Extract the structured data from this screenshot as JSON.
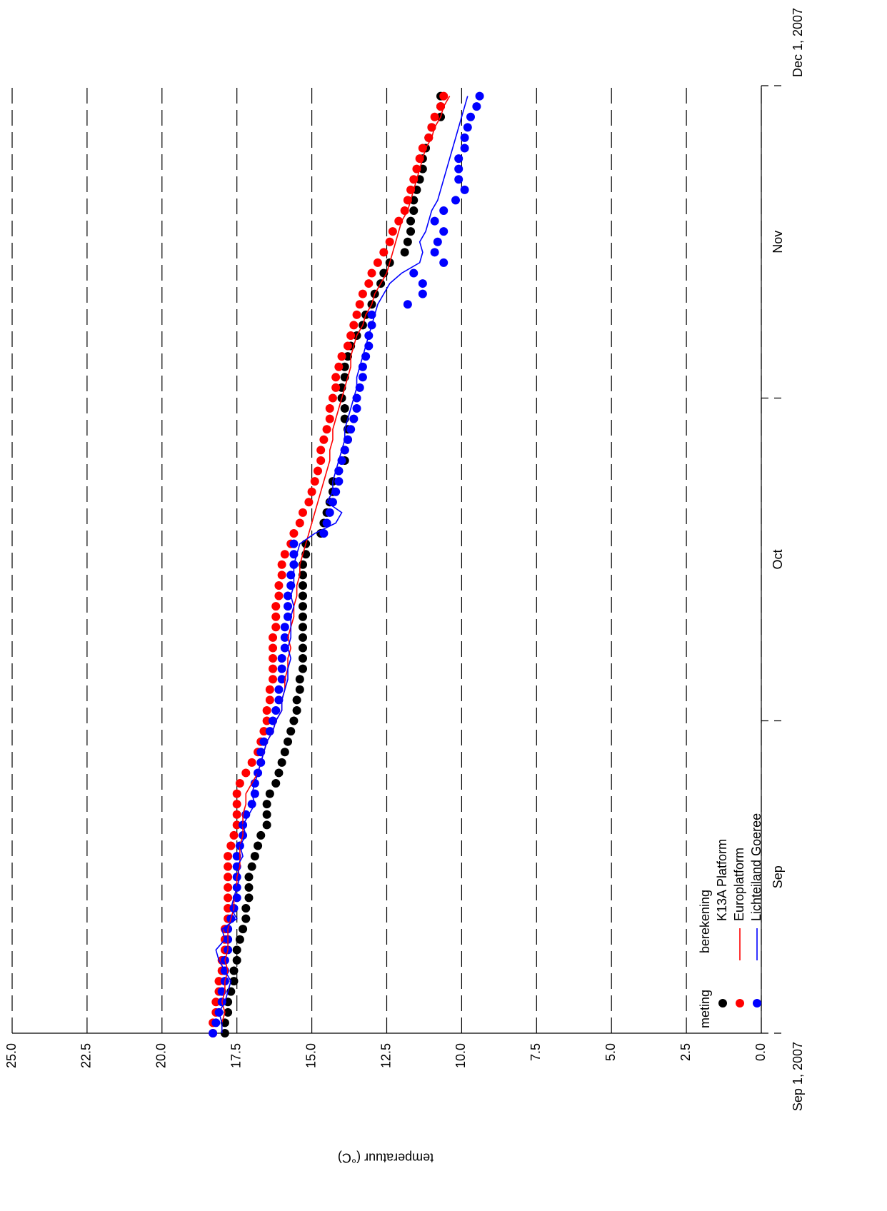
{
  "chart_data": {
    "type": "line",
    "ylabel": "temperatuur (°C)",
    "ylim": [
      0,
      25
    ],
    "yticks": [
      {
        "value": 0,
        "label": "0.0"
      },
      2.5,
      {
        "value": 5,
        "label": "5.0"
      },
      7.5,
      {
        "value": 10,
        "label": "10.0"
      },
      12.5,
      {
        "value": 15,
        "label": "15.0"
      },
      17.5,
      {
        "value": 20,
        "label": "20.0"
      },
      22.5,
      {
        "value": 25,
        "label": "25.0"
      }
    ],
    "grid": true,
    "xlim": [
      "2007-09-01",
      "2007-12-01"
    ],
    "xticks": [
      {
        "value": "2007-09-01",
        "label": "Sep 1, 2007"
      },
      "2007-10-01",
      "2007-11-01",
      {
        "value": "2007-12-01",
        "label": "Dec 1, 2007"
      }
    ],
    "months": [
      "Sep",
      "Oct",
      "Nov"
    ],
    "legend_titles": [
      "meting",
      "berekening"
    ],
    "legend": "lower left",
    "x": [
      "2007-09-01",
      "2007-09-02",
      "2007-09-03",
      "2007-09-04",
      "2007-09-05",
      "2007-09-06",
      "2007-09-07",
      "2007-09-08",
      "2007-09-09",
      "2007-09-10",
      "2007-09-11",
      "2007-09-12",
      "2007-09-13",
      "2007-09-14",
      "2007-09-15",
      "2007-09-16",
      "2007-09-17",
      "2007-09-18",
      "2007-09-19",
      "2007-09-20",
      "2007-09-21",
      "2007-09-22",
      "2007-09-23",
      "2007-09-24",
      "2007-09-25",
      "2007-09-26",
      "2007-09-27",
      "2007-09-28",
      "2007-09-29",
      "2007-09-30",
      "2007-10-01",
      "2007-10-02",
      "2007-10-03",
      "2007-10-04",
      "2007-10-05",
      "2007-10-06",
      "2007-10-07",
      "2007-10-08",
      "2007-10-09",
      "2007-10-10",
      "2007-10-11",
      "2007-10-12",
      "2007-10-13",
      "2007-10-14",
      "2007-10-15",
      "2007-10-16",
      "2007-10-17",
      "2007-10-18",
      "2007-10-19",
      "2007-10-20",
      "2007-10-21",
      "2007-10-22",
      "2007-10-23",
      "2007-10-24",
      "2007-10-25",
      "2007-10-26",
      "2007-10-27",
      "2007-10-28",
      "2007-10-29",
      "2007-10-30",
      "2007-10-31",
      "2007-11-01",
      "2007-11-02",
      "2007-11-03",
      "2007-11-04",
      "2007-11-05",
      "2007-11-06",
      "2007-11-07",
      "2007-11-08",
      "2007-11-09",
      "2007-11-10",
      "2007-11-11",
      "2007-11-12",
      "2007-11-13",
      "2007-11-14",
      "2007-11-15",
      "2007-11-16",
      "2007-11-17",
      "2007-11-18",
      "2007-11-19",
      "2007-11-20",
      "2007-11-21",
      "2007-11-22",
      "2007-11-23",
      "2007-11-24",
      "2007-11-25",
      "2007-11-26",
      "2007-11-27",
      "2007-11-28",
      "2007-11-29",
      "2007-11-30"
    ],
    "series": [
      {
        "name": "K13A Platform",
        "color": "#000000",
        "values": [
          17.9,
          17.9,
          17.8,
          17.8,
          17.7,
          17.6,
          17.6,
          17.5,
          17.5,
          17.4,
          17.3,
          17.2,
          17.2,
          17.1,
          17.1,
          17.1,
          17.0,
          16.9,
          16.8,
          16.7,
          16.5,
          16.5,
          16.5,
          16.4,
          16.2,
          16.1,
          16.0,
          15.9,
          15.8,
          15.7,
          15.6,
          15.5,
          15.5,
          15.4,
          15.4,
          15.3,
          15.3,
          15.3,
          15.3,
          15.3,
          15.3,
          15.3,
          15.3,
          15.3,
          15.3,
          15.3,
          15.2,
          15.2,
          14.7,
          14.6,
          14.5,
          14.4,
          14.3,
          14.3,
          14.1,
          13.9,
          13.9,
          13.8,
          13.8,
          13.9,
          13.9,
          14.0,
          14.0,
          13.9,
          13.9,
          13.8,
          13.7,
          13.5,
          13.3,
          13.2,
          13.0,
          12.9,
          12.7,
          12.6,
          12.4,
          11.9,
          11.8,
          11.7,
          11.7,
          11.6,
          11.6,
          11.5,
          11.4,
          11.3,
          11.3,
          11.2,
          11.1,
          11.0,
          10.7,
          10.7,
          10.7
        ]
      },
      {
        "name": "Europlatform",
        "color": "#ff0000",
        "values": [
          18.3,
          18.3,
          18.2,
          18.2,
          18.1,
          18.1,
          18.0,
          18.0,
          17.9,
          17.9,
          17.9,
          17.8,
          17.8,
          17.8,
          17.8,
          17.8,
          17.8,
          17.8,
          17.7,
          17.6,
          17.5,
          17.5,
          17.5,
          17.5,
          17.4,
          17.2,
          17.0,
          16.8,
          16.7,
          16.6,
          16.5,
          16.5,
          16.4,
          16.4,
          16.3,
          16.3,
          16.3,
          16.3,
          16.3,
          16.2,
          16.2,
          16.2,
          16.1,
          16.1,
          16.0,
          16.0,
          15.9,
          15.7,
          15.6,
          15.4,
          15.3,
          15.1,
          15.0,
          14.9,
          14.8,
          14.7,
          14.7,
          14.6,
          14.5,
          14.4,
          14.4,
          14.3,
          14.2,
          14.2,
          14.1,
          14.0,
          13.8,
          13.7,
          13.6,
          13.5,
          13.4,
          13.3,
          13.1,
          13.0,
          12.8,
          12.6,
          12.4,
          12.3,
          12.1,
          11.9,
          11.8,
          11.7,
          11.6,
          11.5,
          11.4,
          11.3,
          11.1,
          11.0,
          10.9,
          10.7,
          10.6
        ],
        "computed": [
          18.0,
          18.0,
          17.9,
          18.0,
          17.9,
          17.9,
          17.8,
          17.9,
          17.8,
          17.8,
          17.8,
          17.7,
          17.6,
          17.6,
          17.5,
          17.5,
          17.4,
          17.4,
          17.4,
          17.3,
          17.3,
          17.3,
          17.2,
          17.2,
          17.0,
          16.8,
          16.7,
          16.6,
          16.5,
          16.3,
          16.2,
          16.0,
          16.0,
          15.9,
          15.9,
          15.8,
          15.8,
          15.7,
          15.8,
          15.7,
          15.6,
          15.6,
          15.5,
          15.5,
          15.4,
          15.4,
          15.3,
          15.2,
          15.1,
          15.0,
          14.9,
          14.8,
          14.7,
          14.6,
          14.5,
          14.4,
          14.4,
          14.3,
          14.3,
          14.2,
          14.1,
          14.0,
          13.9,
          13.8,
          13.7,
          13.7,
          13.6,
          13.5,
          13.3,
          13.2,
          13.0,
          12.9,
          12.7,
          12.5,
          12.4,
          12.3,
          12.2,
          12.1,
          12.0,
          11.8,
          11.7,
          11.6,
          11.5,
          11.4,
          11.3,
          11.2,
          11.0,
          10.9,
          10.7,
          10.6,
          10.4
        ]
      },
      {
        "name": "Lichteiland Goeree",
        "color": "#0000ff",
        "values": [
          18.3,
          18.2,
          18.1,
          18.0,
          18.0,
          17.9,
          17.9,
          17.9,
          17.8,
          17.8,
          17.8,
          17.7,
          17.6,
          17.5,
          17.5,
          17.5,
          17.5,
          17.5,
          17.4,
          17.3,
          17.3,
          17.2,
          17.0,
          16.9,
          16.9,
          16.8,
          16.7,
          16.7,
          16.6,
          16.4,
          16.3,
          16.2,
          16.1,
          16.1,
          16.0,
          16.0,
          16.0,
          15.9,
          15.9,
          15.9,
          15.8,
          15.8,
          15.8,
          15.7,
          15.7,
          15.6,
          15.6,
          15.6,
          14.6,
          14.5,
          14.4,
          14.3,
          14.2,
          14.1,
          14.1,
          14.0,
          13.9,
          13.8,
          13.7,
          13.6,
          13.5,
          13.5,
          13.4,
          13.3,
          13.3,
          13.2,
          13.1,
          13.1,
          13.0,
          13.0,
          11.8,
          11.3,
          11.3,
          11.6,
          10.6,
          10.9,
          10.8,
          10.6,
          10.9,
          10.6,
          10.2,
          9.9,
          10.1,
          10.1,
          10.1,
          9.9,
          9.9,
          9.8,
          9.7,
          9.5,
          9.4
        ],
        "computed": [
          18.0,
          18.0,
          18.1,
          17.9,
          17.8,
          17.7,
          17.9,
          18.1,
          18.2,
          17.9,
          18.0,
          17.5,
          17.7,
          17.6,
          17.5,
          17.4,
          17.5,
          17.3,
          17.4,
          17.2,
          17.3,
          17.1,
          16.9,
          17.0,
          16.9,
          16.8,
          16.7,
          16.6,
          16.5,
          16.3,
          16.2,
          16.0,
          16.0,
          15.9,
          15.8,
          15.8,
          15.7,
          15.8,
          15.7,
          15.7,
          15.7,
          15.6,
          15.7,
          15.6,
          15.6,
          15.6,
          15.5,
          15.4,
          14.9,
          14.2,
          14.0,
          14.5,
          14.3,
          14.3,
          14.2,
          14.1,
          14.0,
          13.9,
          13.9,
          13.8,
          13.7,
          13.6,
          13.5,
          13.5,
          13.4,
          13.3,
          13.2,
          13.1,
          13.0,
          12.9,
          12.8,
          12.6,
          12.4,
          12.0,
          11.4,
          11.3,
          11.4,
          11.2,
          11.1,
          11.0,
          10.8,
          10.7,
          10.6,
          10.5,
          10.4,
          10.3,
          10.2,
          10.1,
          10.0,
          9.9,
          9.8
        ]
      }
    ]
  }
}
